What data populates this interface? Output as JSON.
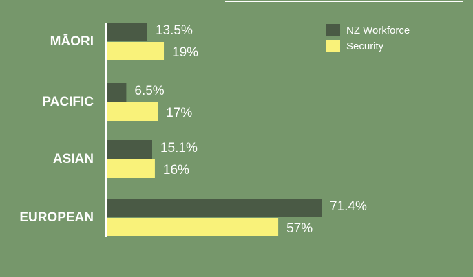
{
  "chart_data": {
    "type": "bar",
    "orientation": "horizontal",
    "categories": [
      "MĀORI",
      "PACIFIC",
      "ASIAN",
      "EUROPEAN"
    ],
    "series": [
      {
        "name": "NZ Workforce",
        "color": "#4a5a45",
        "values": [
          13.5,
          6.5,
          15.1,
          71.4
        ],
        "value_labels": [
          "13.5%",
          "6.5%",
          "15.1%",
          "71.4%"
        ]
      },
      {
        "name": "Security",
        "color": "#f9f27a",
        "values": [
          19,
          17,
          16,
          57
        ],
        "value_labels": [
          "19%",
          "17%",
          "16%",
          "57%"
        ]
      }
    ],
    "legend": "top-right"
  }
}
